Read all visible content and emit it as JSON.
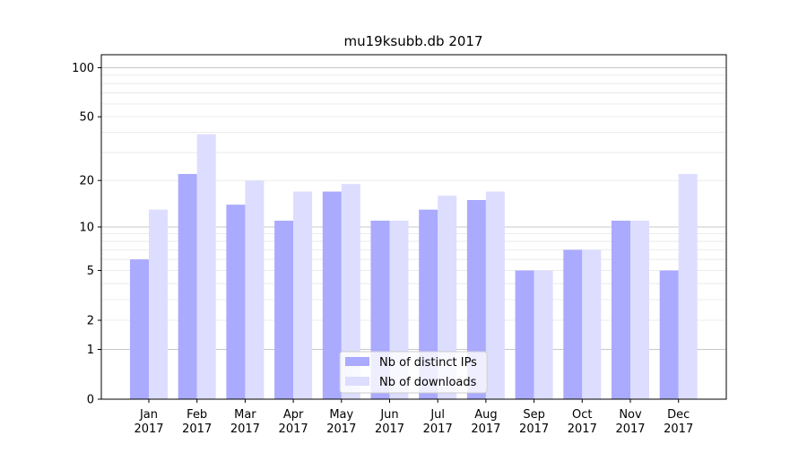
{
  "chart_data": {
    "type": "bar",
    "title": "mu19ksubb.db 2017",
    "xlabel": "",
    "ylabel": "",
    "yscale": "log(1+y)",
    "ylim": [
      0,
      120
    ],
    "yticks": [
      0,
      1,
      2,
      5,
      10,
      20,
      50,
      100
    ],
    "grid": true,
    "legend_position": "lower-center",
    "categories": [
      "Jan\n2017",
      "Feb\n2017",
      "Mar\n2017",
      "Apr\n2017",
      "May\n2017",
      "Jun\n2017",
      "Jul\n2017",
      "Aug\n2017",
      "Sep\n2017",
      "Oct\n2017",
      "Nov\n2017",
      "Dec\n2017"
    ],
    "series": [
      {
        "name": "Nb of distinct IPs",
        "color": "#aaaaff",
        "values": [
          6,
          22,
          14,
          11,
          17,
          11,
          13,
          15,
          5,
          7,
          11,
          5
        ]
      },
      {
        "name": "Nb of downloads",
        "color": "#ddddff",
        "values": [
          13,
          39,
          20,
          17,
          19,
          11,
          16,
          17,
          5,
          7,
          11,
          22
        ]
      }
    ]
  }
}
